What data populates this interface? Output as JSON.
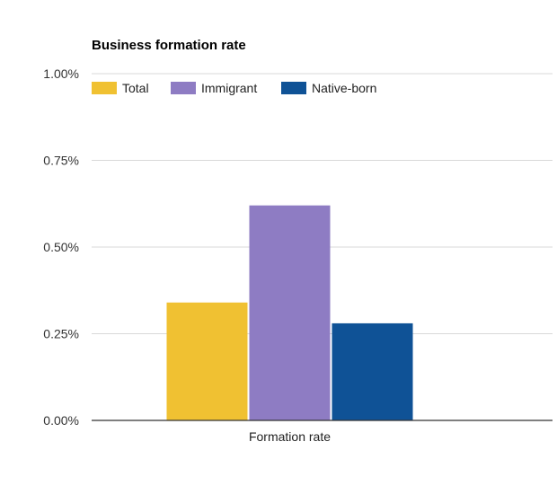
{
  "chart_data": {
    "type": "bar",
    "title": "Business formation rate",
    "categories": [
      "Formation rate"
    ],
    "series": [
      {
        "name": "Total",
        "values": [
          0.34
        ],
        "color": "#f0c132"
      },
      {
        "name": "Immigrant",
        "values": [
          0.62
        ],
        "color": "#8e7cc3"
      },
      {
        "name": "Native-born",
        "values": [
          0.28
        ],
        "color": "#0f5296"
      }
    ],
    "yticks": [
      0,
      0.25,
      0.5,
      0.75,
      1.0
    ],
    "ytick_labels": [
      "0.00%",
      "0.25%",
      "0.50%",
      "0.75%",
      "1.00%"
    ],
    "ylim": [
      0,
      1.0
    ],
    "xlabel": "",
    "ylabel": "",
    "legend_position": "top-left",
    "grid": true,
    "grid_color": "#d9d9d9",
    "axis_color": "#333333"
  }
}
